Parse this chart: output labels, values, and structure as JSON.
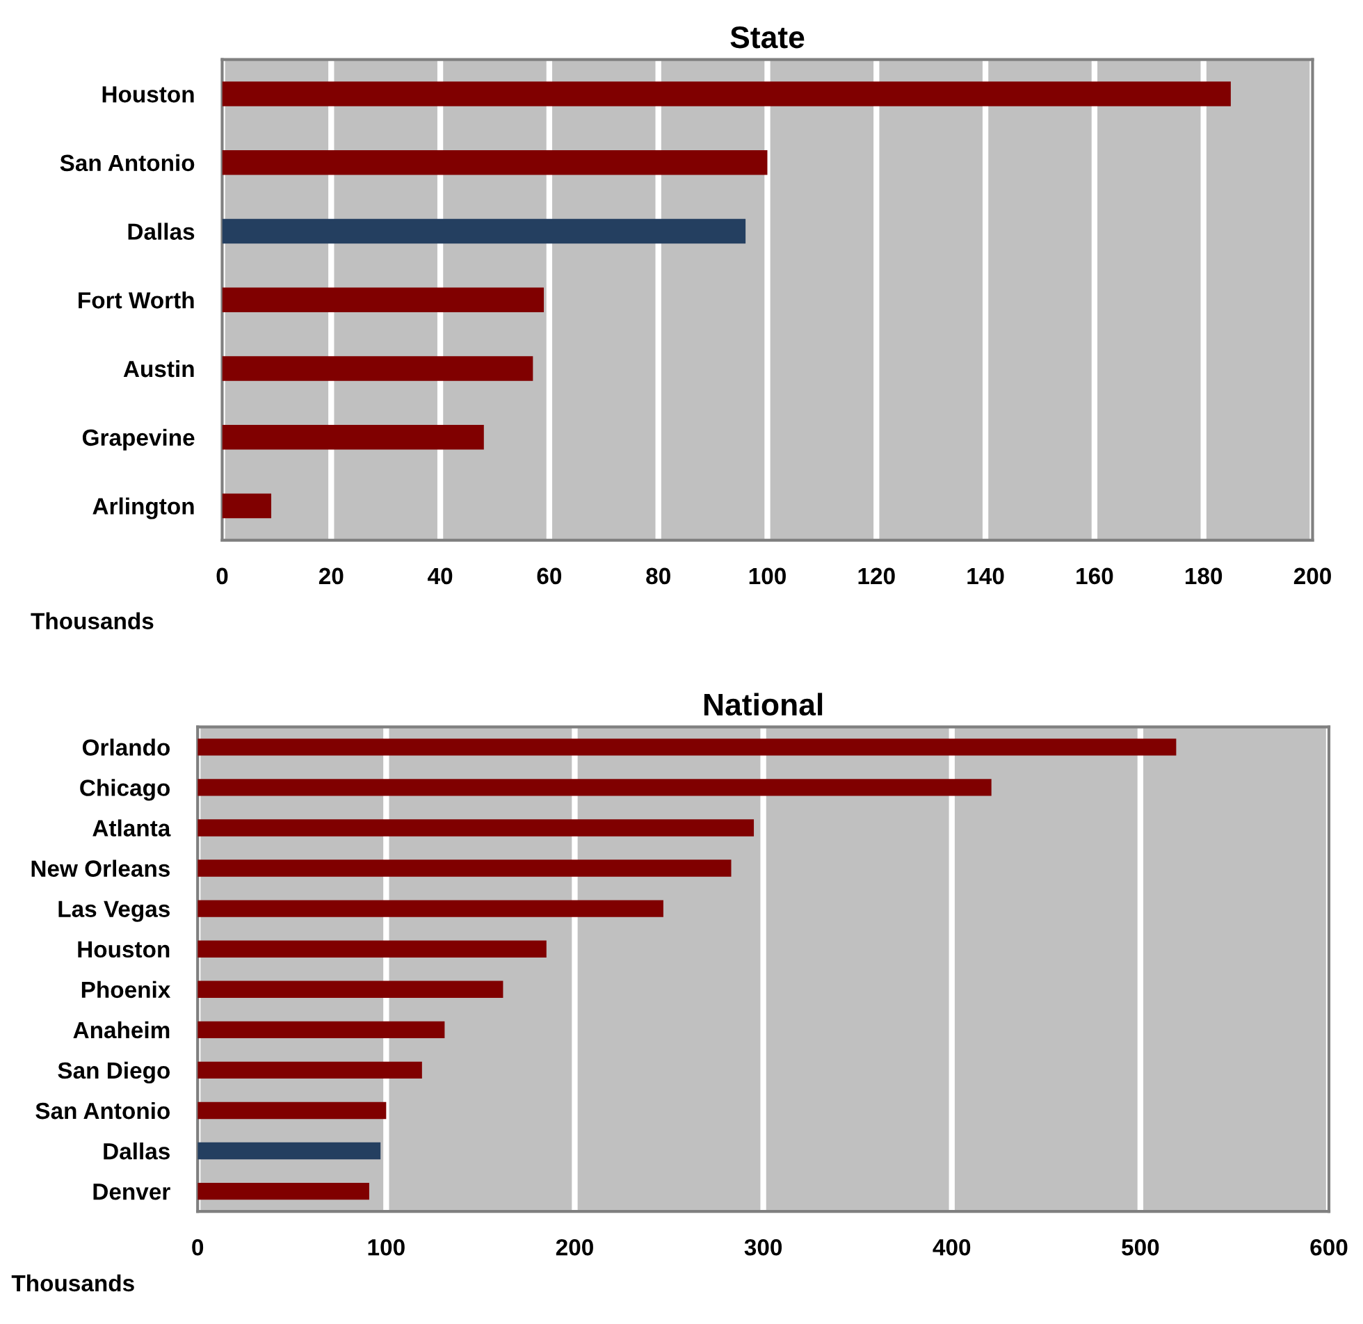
{
  "chart_data": [
    {
      "type": "bar",
      "orientation": "horizontal",
      "title": "State",
      "xlabel": "Thousands",
      "categories": [
        "Houston",
        "San Antonio",
        "Dallas",
        "Fort Worth",
        "Austin",
        "Grapevine",
        "Arlington"
      ],
      "values": [
        185,
        100,
        96,
        59,
        57,
        48,
        9
      ],
      "colors": [
        "#800000",
        "#800000",
        "#243f60",
        "#800000",
        "#800000",
        "#800000",
        "#800000"
      ],
      "xlim": [
        0,
        200
      ],
      "xticks": [
        0,
        20,
        40,
        60,
        80,
        100,
        120,
        140,
        160,
        180,
        200
      ],
      "grid": "x",
      "legend": false
    },
    {
      "type": "bar",
      "orientation": "horizontal",
      "title": "National",
      "xlabel": "Thousands",
      "categories": [
        "Orlando",
        "Chicago",
        "Atlanta",
        "New Orleans",
        "Las Vegas",
        "Houston",
        "Phoenix",
        "Anaheim",
        "San Diego",
        "San Antonio",
        "Dallas",
        "Denver"
      ],
      "values": [
        519,
        421,
        295,
        283,
        247,
        185,
        162,
        131,
        119,
        100,
        97,
        91
      ],
      "colors": [
        "#800000",
        "#800000",
        "#800000",
        "#800000",
        "#800000",
        "#800000",
        "#800000",
        "#800000",
        "#800000",
        "#800000",
        "#243f60",
        "#800000"
      ],
      "xlim": [
        0,
        600
      ],
      "xticks": [
        0,
        100,
        200,
        300,
        400,
        500,
        600
      ],
      "grid": "x",
      "legend": false
    }
  ]
}
